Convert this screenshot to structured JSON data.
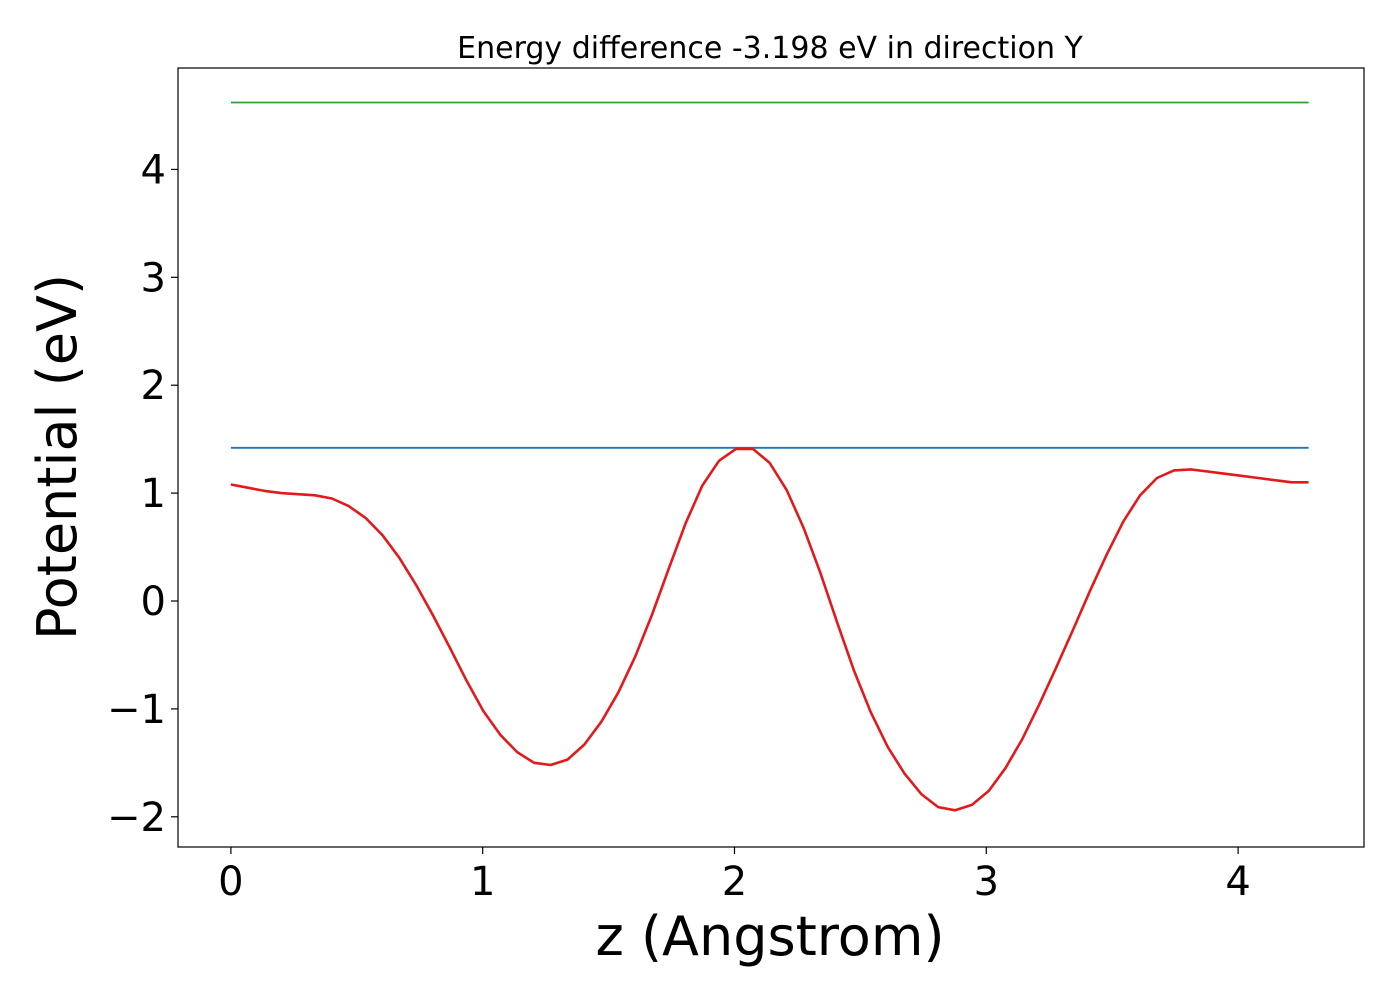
{
  "chart_data": {
    "type": "line",
    "title": "Energy difference -3.198 eV in direction Y",
    "xlabel": "z (Angstrom)",
    "ylabel": "Potential (eV)",
    "xlim": [
      -0.21,
      4.5
    ],
    "ylim": [
      -2.28,
      4.94
    ],
    "x_ticks": [
      0,
      1,
      2,
      3,
      4
    ],
    "x_tick_labels": [
      "0",
      "1",
      "2",
      "3",
      "4"
    ],
    "y_ticks": [
      -2,
      -1,
      0,
      1,
      2,
      3,
      4
    ],
    "y_tick_labels": [
      "−2",
      "−1",
      "0",
      "1",
      "2",
      "3",
      "4"
    ],
    "grid": false,
    "legend": "none",
    "series": [
      {
        "color": "#2ca02c",
        "style": "horizontal",
        "x": [
          0,
          4.28
        ],
        "y": [
          4.62,
          4.62
        ]
      },
      {
        "color": "#1f77b4",
        "style": "horizontal",
        "x": [
          0,
          4.28
        ],
        "y": [
          1.42,
          1.42
        ]
      },
      {
        "color": "#e31a1c",
        "style": "line",
        "x": [
          0.0,
          0.067,
          0.134,
          0.2,
          0.267,
          0.334,
          0.401,
          0.468,
          0.535,
          0.602,
          0.669,
          0.735,
          0.802,
          0.869,
          0.936,
          1.003,
          1.07,
          1.137,
          1.204,
          1.27,
          1.337,
          1.404,
          1.471,
          1.538,
          1.605,
          1.672,
          1.739,
          1.806,
          1.872,
          1.939,
          2.006,
          2.073,
          2.14,
          2.207,
          2.274,
          2.341,
          2.408,
          2.474,
          2.541,
          2.608,
          2.675,
          2.742,
          2.809,
          2.876,
          2.943,
          3.01,
          3.076,
          3.143,
          3.21,
          3.277,
          3.344,
          3.411,
          3.478,
          3.545,
          3.611,
          3.678,
          3.745,
          3.812,
          3.879,
          3.946,
          4.013,
          4.08,
          4.146,
          4.213,
          4.28
        ],
        "y": [
          1.08,
          1.05,
          1.02,
          1.0,
          0.99,
          0.98,
          0.95,
          0.88,
          0.77,
          0.61,
          0.4,
          0.15,
          -0.13,
          -0.43,
          -0.74,
          -1.02,
          -1.24,
          -1.4,
          -1.5,
          -1.52,
          -1.47,
          -1.33,
          -1.12,
          -0.85,
          -0.52,
          -0.13,
          0.3,
          0.72,
          1.07,
          1.3,
          1.41,
          1.41,
          1.28,
          1.03,
          0.68,
          0.26,
          -0.2,
          -0.64,
          -1.03,
          -1.35,
          -1.6,
          -1.79,
          -1.91,
          -1.94,
          -1.89,
          -1.76,
          -1.55,
          -1.28,
          -0.96,
          -0.62,
          -0.27,
          0.09,
          0.43,
          0.74,
          0.98,
          1.14,
          1.21,
          1.22,
          1.2,
          1.18,
          1.16,
          1.14,
          1.12,
          1.1,
          1.1
        ]
      }
    ]
  }
}
